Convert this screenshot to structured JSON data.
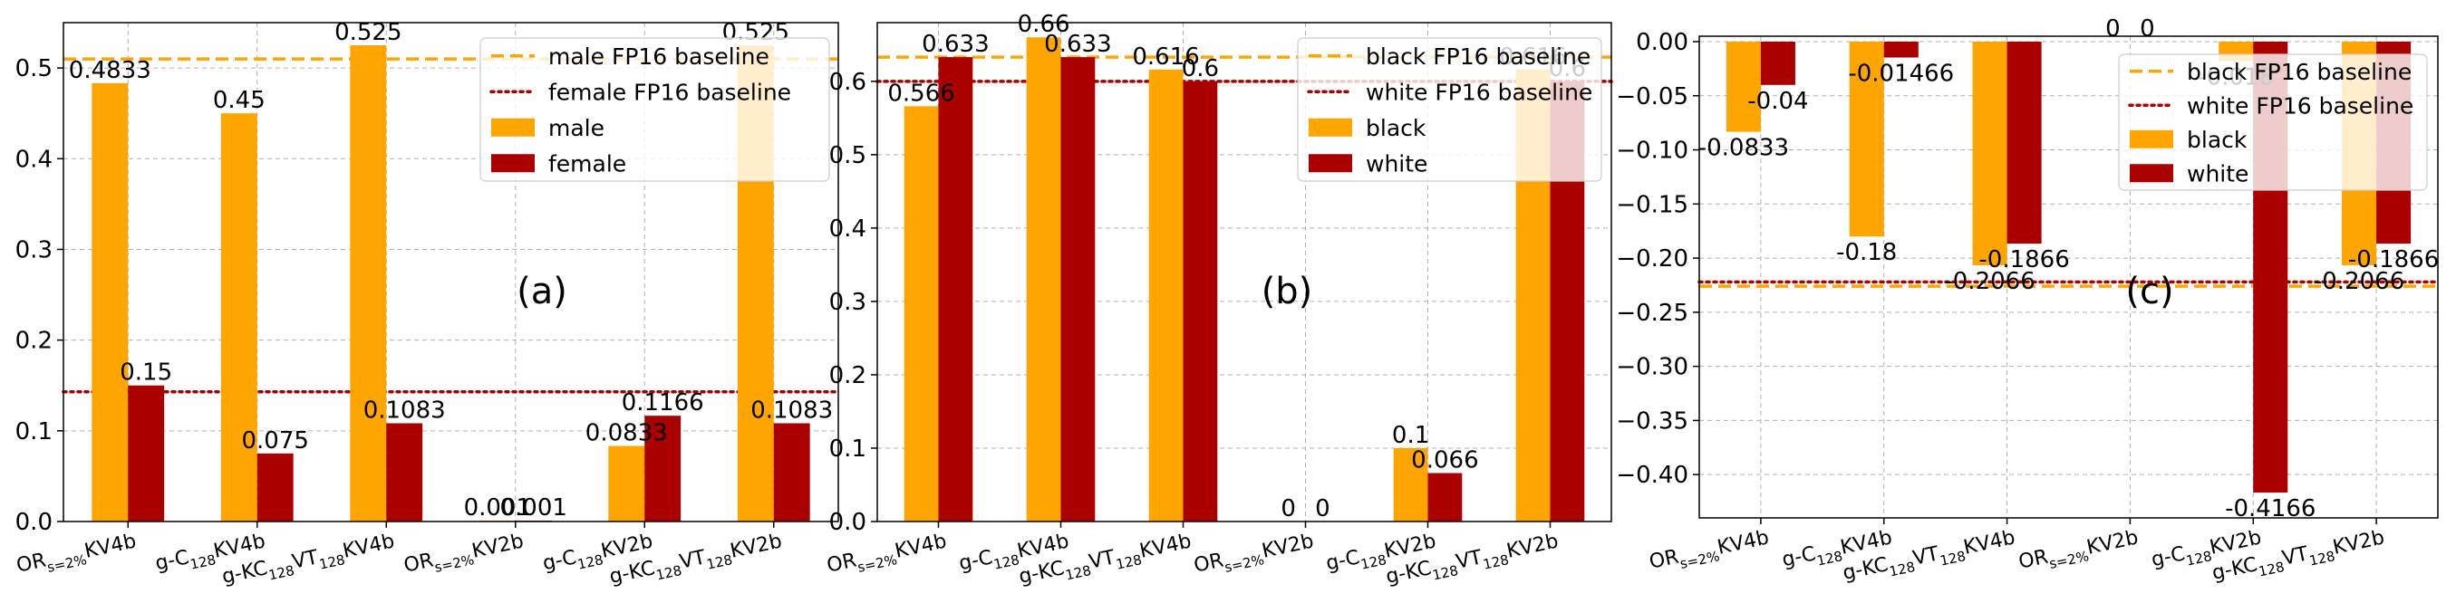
{
  "colors": {
    "orange": "#FFA500",
    "red": "#AA0000",
    "dashed_line": "#FFA500",
    "dotted_line": "#AA0000",
    "grid": "#b0b0b0"
  },
  "chart_data": [
    {
      "type": "bar",
      "panel_label": "(a)",
      "categories": [
        "OR_{s=2%}KV4b",
        "g-C_{128}KV4b",
        "g-KC_{128}VT_{128}KV4b",
        "OR_{s=2%}KV2b",
        "g-C_{128}KV2b",
        "g-KC_{128}VT_{128}KV2b"
      ],
      "series": [
        {
          "name": "male",
          "color": "#FFA500",
          "values": [
            0.4833,
            0.45,
            0.525,
            0.001,
            0.0833,
            0.525
          ],
          "labels": [
            "0.4833",
            "0.45",
            "0.525",
            "0.001",
            "0.0833",
            "0.525"
          ]
        },
        {
          "name": "female",
          "color": "#AA0000",
          "values": [
            0.15,
            0.075,
            0.1083,
            0.001,
            0.1166,
            0.1083
          ],
          "labels": [
            "0.15",
            "0.075",
            "0.1083",
            "0.001",
            "0.1166",
            "0.1083"
          ]
        }
      ],
      "baselines": [
        {
          "name": "male FP16 baseline",
          "value": 0.51,
          "style": "dashed",
          "color": "#FFA500"
        },
        {
          "name": "female FP16 baseline",
          "value": 0.143,
          "style": "dotted",
          "color": "#AA0000"
        }
      ],
      "ylim": [
        0,
        0.55
      ],
      "yticks": [
        0.0,
        0.1,
        0.2,
        0.3,
        0.4,
        0.5
      ],
      "ytick_labels": [
        "0.0",
        "0.1",
        "0.2",
        "0.3",
        "0.4",
        "0.5"
      ],
      "grid": true,
      "legend": "top-right"
    },
    {
      "type": "bar",
      "panel_label": "(b)",
      "categories": [
        "OR_{s=2%}KV4b",
        "g-C_{128}KV4b",
        "g-KC_{128}VT_{128}KV4b",
        "OR_{s=2%}KV2b",
        "g-C_{128}KV2b",
        "g-KC_{128}VT_{128}KV2b"
      ],
      "series": [
        {
          "name": "black",
          "color": "#FFA500",
          "values": [
            0.566,
            0.66,
            0.616,
            0,
            0.1,
            0.616
          ],
          "labels": [
            "0.566",
            "0.66",
            "0.616",
            "0",
            "0.1",
            "0.616"
          ]
        },
        {
          "name": "white",
          "color": "#AA0000",
          "values": [
            0.633,
            0.633,
            0.6,
            0,
            0.066,
            0.6
          ],
          "labels": [
            "0.633",
            "0.633",
            "0.6",
            "0",
            "0.066",
            "0.6"
          ]
        }
      ],
      "baselines": [
        {
          "name": "black FP16 baseline",
          "value": 0.633,
          "style": "dashed",
          "color": "#FFA500"
        },
        {
          "name": "white FP16 baseline",
          "value": 0.6,
          "style": "dotted",
          "color": "#AA0000"
        }
      ],
      "ylim": [
        0,
        0.68
      ],
      "yticks": [
        0.0,
        0.1,
        0.2,
        0.3,
        0.4,
        0.5,
        0.6
      ],
      "ytick_labels": [
        "0.0",
        "0.1",
        "0.2",
        "0.3",
        "0.4",
        "0.5",
        "0.6"
      ],
      "grid": true,
      "legend": "top-right"
    },
    {
      "type": "bar",
      "panel_label": "(c)",
      "categories": [
        "OR_{s=2%}KV4b",
        "g-C_{128}KV4b",
        "g-KC_{128}VT_{128}KV4b",
        "OR_{s=2%}KV2b",
        "g-C_{128}KV2b",
        "g-KC_{128}VT_{128}KV2b"
      ],
      "series": [
        {
          "name": "black",
          "color": "#FFA500",
          "values": [
            -0.0833,
            -0.18,
            -0.2066,
            0,
            -0.018,
            -0.2066
          ],
          "labels": [
            "-0.0833",
            "-0.18",
            "-0.2066",
            "0",
            "-0.018",
            "-0.2066"
          ]
        },
        {
          "name": "white",
          "color": "#AA0000",
          "values": [
            -0.04,
            -0.01466,
            -0.1866,
            0,
            -0.4166,
            -0.1866
          ],
          "labels": [
            "-0.04",
            "-0.01466",
            "-0.1866",
            "0",
            "-0.4166",
            "-0.1866"
          ]
        }
      ],
      "baselines": [
        {
          "name": "black FP16 baseline",
          "value": -0.226,
          "style": "dashed",
          "color": "#FFA500"
        },
        {
          "name": "white FP16 baseline",
          "value": -0.222,
          "style": "dotted",
          "color": "#AA0000"
        }
      ],
      "ylim": [
        -0.44,
        0.005
      ],
      "yticks": [
        0.0,
        -0.05,
        -0.1,
        -0.15,
        -0.2,
        -0.25,
        -0.3,
        -0.35,
        -0.4
      ],
      "ytick_labels": [
        "0.00",
        "−0.05",
        "−0.10",
        "−0.15",
        "−0.20",
        "−0.25",
        "−0.30",
        "−0.35",
        "−0.40"
      ],
      "grid": true,
      "legend": "top-right"
    }
  ]
}
